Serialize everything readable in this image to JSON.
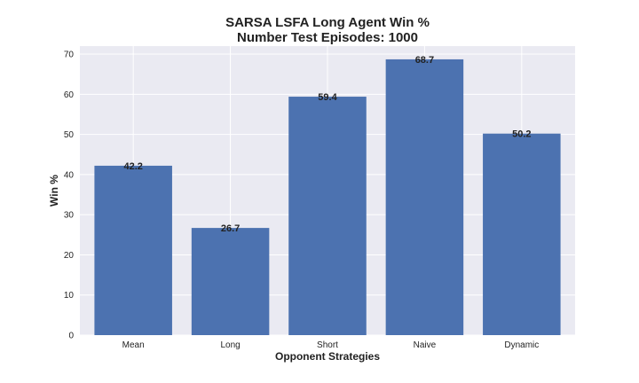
{
  "chart_data": {
    "type": "bar",
    "title": "SARSA LSFA Long Agent Win %",
    "subtitle": "Number Test Episodes: 1000",
    "xlabel": "Opponent Strategies",
    "ylabel": "Win %",
    "categories": [
      "Mean",
      "Long",
      "Short",
      "Naive",
      "Dynamic"
    ],
    "values": [
      42.2,
      26.7,
      59.4,
      68.7,
      50.2
    ],
    "data_labels": [
      "42.2",
      "26.7",
      "59.4",
      "68.7",
      "50.2"
    ],
    "ylim": [
      0,
      72
    ],
    "yticks": [
      "0",
      "10",
      "20",
      "30",
      "40",
      "50",
      "60",
      "70"
    ],
    "grid": true,
    "colors": {
      "bar": "#4c72b0",
      "plot_bg": "#eaeaf2",
      "grid": "#ffffff"
    }
  }
}
